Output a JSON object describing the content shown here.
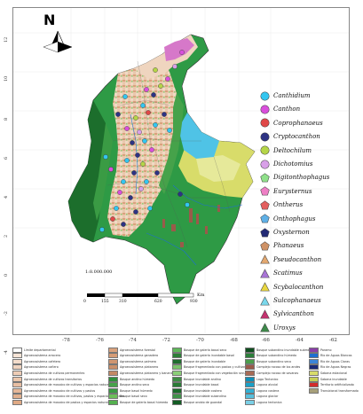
{
  "north_letter": "N",
  "latitude_labels": [
    "12",
    "10",
    "8",
    "6",
    "4",
    "2",
    "0",
    "-2",
    "-4"
  ],
  "longitude_labels": [
    "-78",
    "-76",
    "-74",
    "-72",
    "-70",
    "-68",
    "-66",
    "-64",
    "-62"
  ],
  "scale": {
    "ratio": "1:8.000.000",
    "unit": "Km",
    "ticks": [
      "0",
      "155",
      "310",
      "",
      "620",
      "930"
    ]
  },
  "genera_legend": [
    {
      "name": "Canthidium",
      "symbol": "circle",
      "color": "#33c6f0"
    },
    {
      "name": "Canthon",
      "symbol": "circle",
      "color": "#d94fdc"
    },
    {
      "name": "Coprophanaeus",
      "symbol": "circle",
      "color": "#e04848"
    },
    {
      "name": "Cryptocanthon",
      "symbol": "circle",
      "color": "#2e3384"
    },
    {
      "name": "Deltochilum",
      "symbol": "circle",
      "color": "#b5d548"
    },
    {
      "name": "Dichotomius",
      "symbol": "circle",
      "color": "#d8a0e8"
    },
    {
      "name": "Digitonthophagus",
      "symbol": "pentagon",
      "color": "#8fe08a"
    },
    {
      "name": "Eurysternus",
      "symbol": "pentagon",
      "color": "#ee7fc5"
    },
    {
      "name": "Ontherus",
      "symbol": "pentagon",
      "color": "#e35f5f"
    },
    {
      "name": "Onthophagus",
      "symbol": "pentagon",
      "color": "#5fb0e6"
    },
    {
      "name": "Oxysternon",
      "symbol": "pentagon",
      "color": "#232a75"
    },
    {
      "name": "Phanaeus",
      "symbol": "pentagon",
      "color": "#cf9266"
    },
    {
      "name": "Pseudocanthon",
      "symbol": "triangle",
      "color": "#e3a870"
    },
    {
      "name": "Scatimus",
      "symbol": "triangle",
      "color": "#a874d6"
    },
    {
      "name": "Scybalocanthon",
      "symbol": "triangle",
      "color": "#e8d640"
    },
    {
      "name": "Sulcophanaeus",
      "symbol": "triangle",
      "color": "#7ad8ec"
    },
    {
      "name": "Sylvicanthon",
      "symbol": "triangle",
      "color": "#c4326f"
    },
    {
      "name": "Uroxys",
      "symbol": "triangle",
      "color": "#3d8a4a"
    }
  ],
  "cover_legend_columns": [
    [
      {
        "label": "Límite departamental",
        "color": "#ffffff"
      },
      {
        "label": "Agroecosistema arrocero",
        "color": "#f6e4d6"
      },
      {
        "label": "Agroecosistema cafetero",
        "color": "#f3dccb"
      },
      {
        "label": "Agroecosistema cañero",
        "color": "#f0d4c0"
      },
      {
        "label": "Agroecosistema de cultivos permanentes",
        "color": "#eecdb6"
      },
      {
        "label": "Agroecosistema de cultivos transitorios",
        "color": "#ebc6ac"
      },
      {
        "label": "Agroecosistema de mosaico de cultivos y espacios naturales",
        "color": "#e8bea2"
      },
      {
        "label": "Agroecosistema de mosaico de cultivos y pastos",
        "color": "#e5b798"
      },
      {
        "label": "Agroecosistema de mosaico de cultivos, pastos y espacios naturales",
        "color": "#e2b08e"
      },
      {
        "label": "Agroecosistema de mosaico de pastos y espacios naturales",
        "color": "#dfa984"
      }
    ],
    [
      {
        "label": "Agroecosistema forestal",
        "color": "#d9a27d"
      },
      {
        "label": "Agroecosistema ganadero",
        "color": "#d59c76"
      },
      {
        "label": "Agroecosistema palmero",
        "color": "#cf9570"
      },
      {
        "label": "Agroecosistema platanero",
        "color": "#c98f6a"
      },
      {
        "label": "Agroecosistema platanero y bananero",
        "color": "#c38864"
      },
      {
        "label": "Bosque andino húmedo",
        "color": "#2f8f3c"
      },
      {
        "label": "Bosque andino seco",
        "color": "#46a24a"
      },
      {
        "label": "Bosque basal húmedo",
        "color": "#3a9b44"
      },
      {
        "label": "Bosque basal seco",
        "color": "#6cbf5a"
      },
      {
        "label": "Bosque de galería basal húmedo",
        "color": "#54b04f"
      }
    ],
    [
      {
        "label": "Bosque de galería basal seco",
        "color": "#5fb85a"
      },
      {
        "label": "Bosque de galería inundable basal",
        "color": "#2c7f37"
      },
      {
        "label": "Bosque de galería inundable",
        "color": "#1f6e2e"
      },
      {
        "label": "Bosque fragmentado con pastos y cultivos",
        "color": "#7bc46b"
      },
      {
        "label": "Bosque fragmentado con vegetación secundaria",
        "color": "#8bcf78"
      },
      {
        "label": "Bosque inundable andino",
        "color": "#3d8c43"
      },
      {
        "label": "Bosque inundable basal",
        "color": "#297a35"
      },
      {
        "label": "Bosque inundable costero",
        "color": "#1b6a2a"
      },
      {
        "label": "Bosque inundable subandino",
        "color": "#3f9348"
      },
      {
        "label": "Bosque orobio de guandal",
        "color": "#135c24"
      }
    ],
    [
      {
        "label": "Bosque subandino inundable submedano",
        "color": "#0f4f1f"
      },
      {
        "label": "Bosque subandino húmedo",
        "color": "#2b7f3a"
      },
      {
        "label": "Bosque subandino seco",
        "color": "#4a9d4c"
      },
      {
        "label": "Complejo rocoso de los andes",
        "color": "#9a5a4a"
      },
      {
        "label": "Complejo rocoso de savanas",
        "color": "#a86a55"
      },
      {
        "label": "Lago Tectonico",
        "color": "#0e8fb8"
      },
      {
        "label": "Laguna aluvial",
        "color": "#1aa0c8"
      },
      {
        "label": "Laguna costera",
        "color": "#32b0d4"
      },
      {
        "label": "Laguna glaciar",
        "color": "#56c0de"
      },
      {
        "label": "Laguna tectonica",
        "color": "#7acfe6"
      }
    ],
    [
      {
        "label": "Paramo",
        "color": "#8a3fa8"
      },
      {
        "label": "Río de Aguas Blancas",
        "color": "#1f6fd0"
      },
      {
        "label": "Río de Aguas Claras",
        "color": "#3c85d8"
      },
      {
        "label": "Río de Aguas Negras",
        "color": "#1a2a78"
      },
      {
        "label": "Sabana estacional",
        "color": "#d8dc6a"
      },
      {
        "label": "Sabana inundable",
        "color": "#c6cf56"
      },
      {
        "label": "Territorio artificializado",
        "color": "#d22b2b"
      },
      {
        "label": "Transicional transformado",
        "color": "#a7a07a"
      }
    ]
  ],
  "colors": {
    "andes_mosaic": "#e9c8ad",
    "amazon_forest": "#2e9a45",
    "savanna": "#d8dc6a",
    "lagoon": "#4fc3e6",
    "paramo": "#d678c9"
  }
}
